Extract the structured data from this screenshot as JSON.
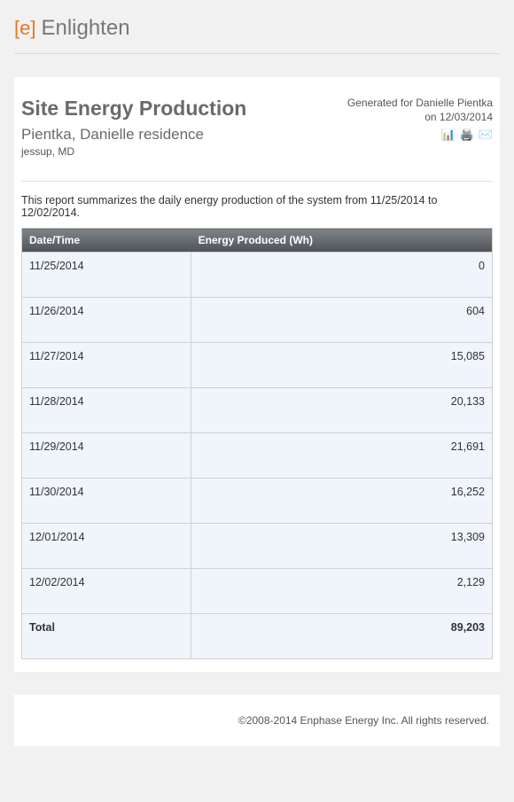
{
  "brand": {
    "mark": "[e]",
    "name": "Enlighten",
    "mark_color": "#e87722",
    "name_color": "#777777"
  },
  "report": {
    "title": "Site Energy Production",
    "site_name": "Pientka, Danielle residence",
    "location": "jessup, MD",
    "generated_for": "Generated for Danielle Pientka",
    "generated_on": "on 12/03/2014",
    "summary": "This report summarizes the daily energy production of the system from 11/25/2014 to 12/02/2014.",
    "icons": {
      "excel": "excel-icon",
      "print": "print-icon",
      "email": "email-icon"
    }
  },
  "table": {
    "columns": [
      "Date/Time",
      "Energy Produced (Wh)"
    ],
    "rows": [
      {
        "date": "11/25/2014",
        "energy": "0"
      },
      {
        "date": "11/26/2014",
        "energy": "604"
      },
      {
        "date": "11/27/2014",
        "energy": "15,085"
      },
      {
        "date": "11/28/2014",
        "energy": "20,133"
      },
      {
        "date": "11/29/2014",
        "energy": "21,691"
      },
      {
        "date": "11/30/2014",
        "energy": "16,252"
      },
      {
        "date": "12/01/2014",
        "energy": "13,309"
      },
      {
        "date": "12/02/2014",
        "energy": "2,129"
      }
    ],
    "total_label": "Total",
    "total_value": "89,203"
  },
  "footer": {
    "copyright": "©2008-2014 Enphase Energy Inc. All rights reserved."
  },
  "style": {
    "page_bg": "#f1f1f1",
    "card_bg": "#ffffff",
    "row_bg": "#eff5fb",
    "header_gradient_top": "#7f8489",
    "header_gradient_bottom": "#4e5358",
    "border_color": "#d0d0d0"
  }
}
